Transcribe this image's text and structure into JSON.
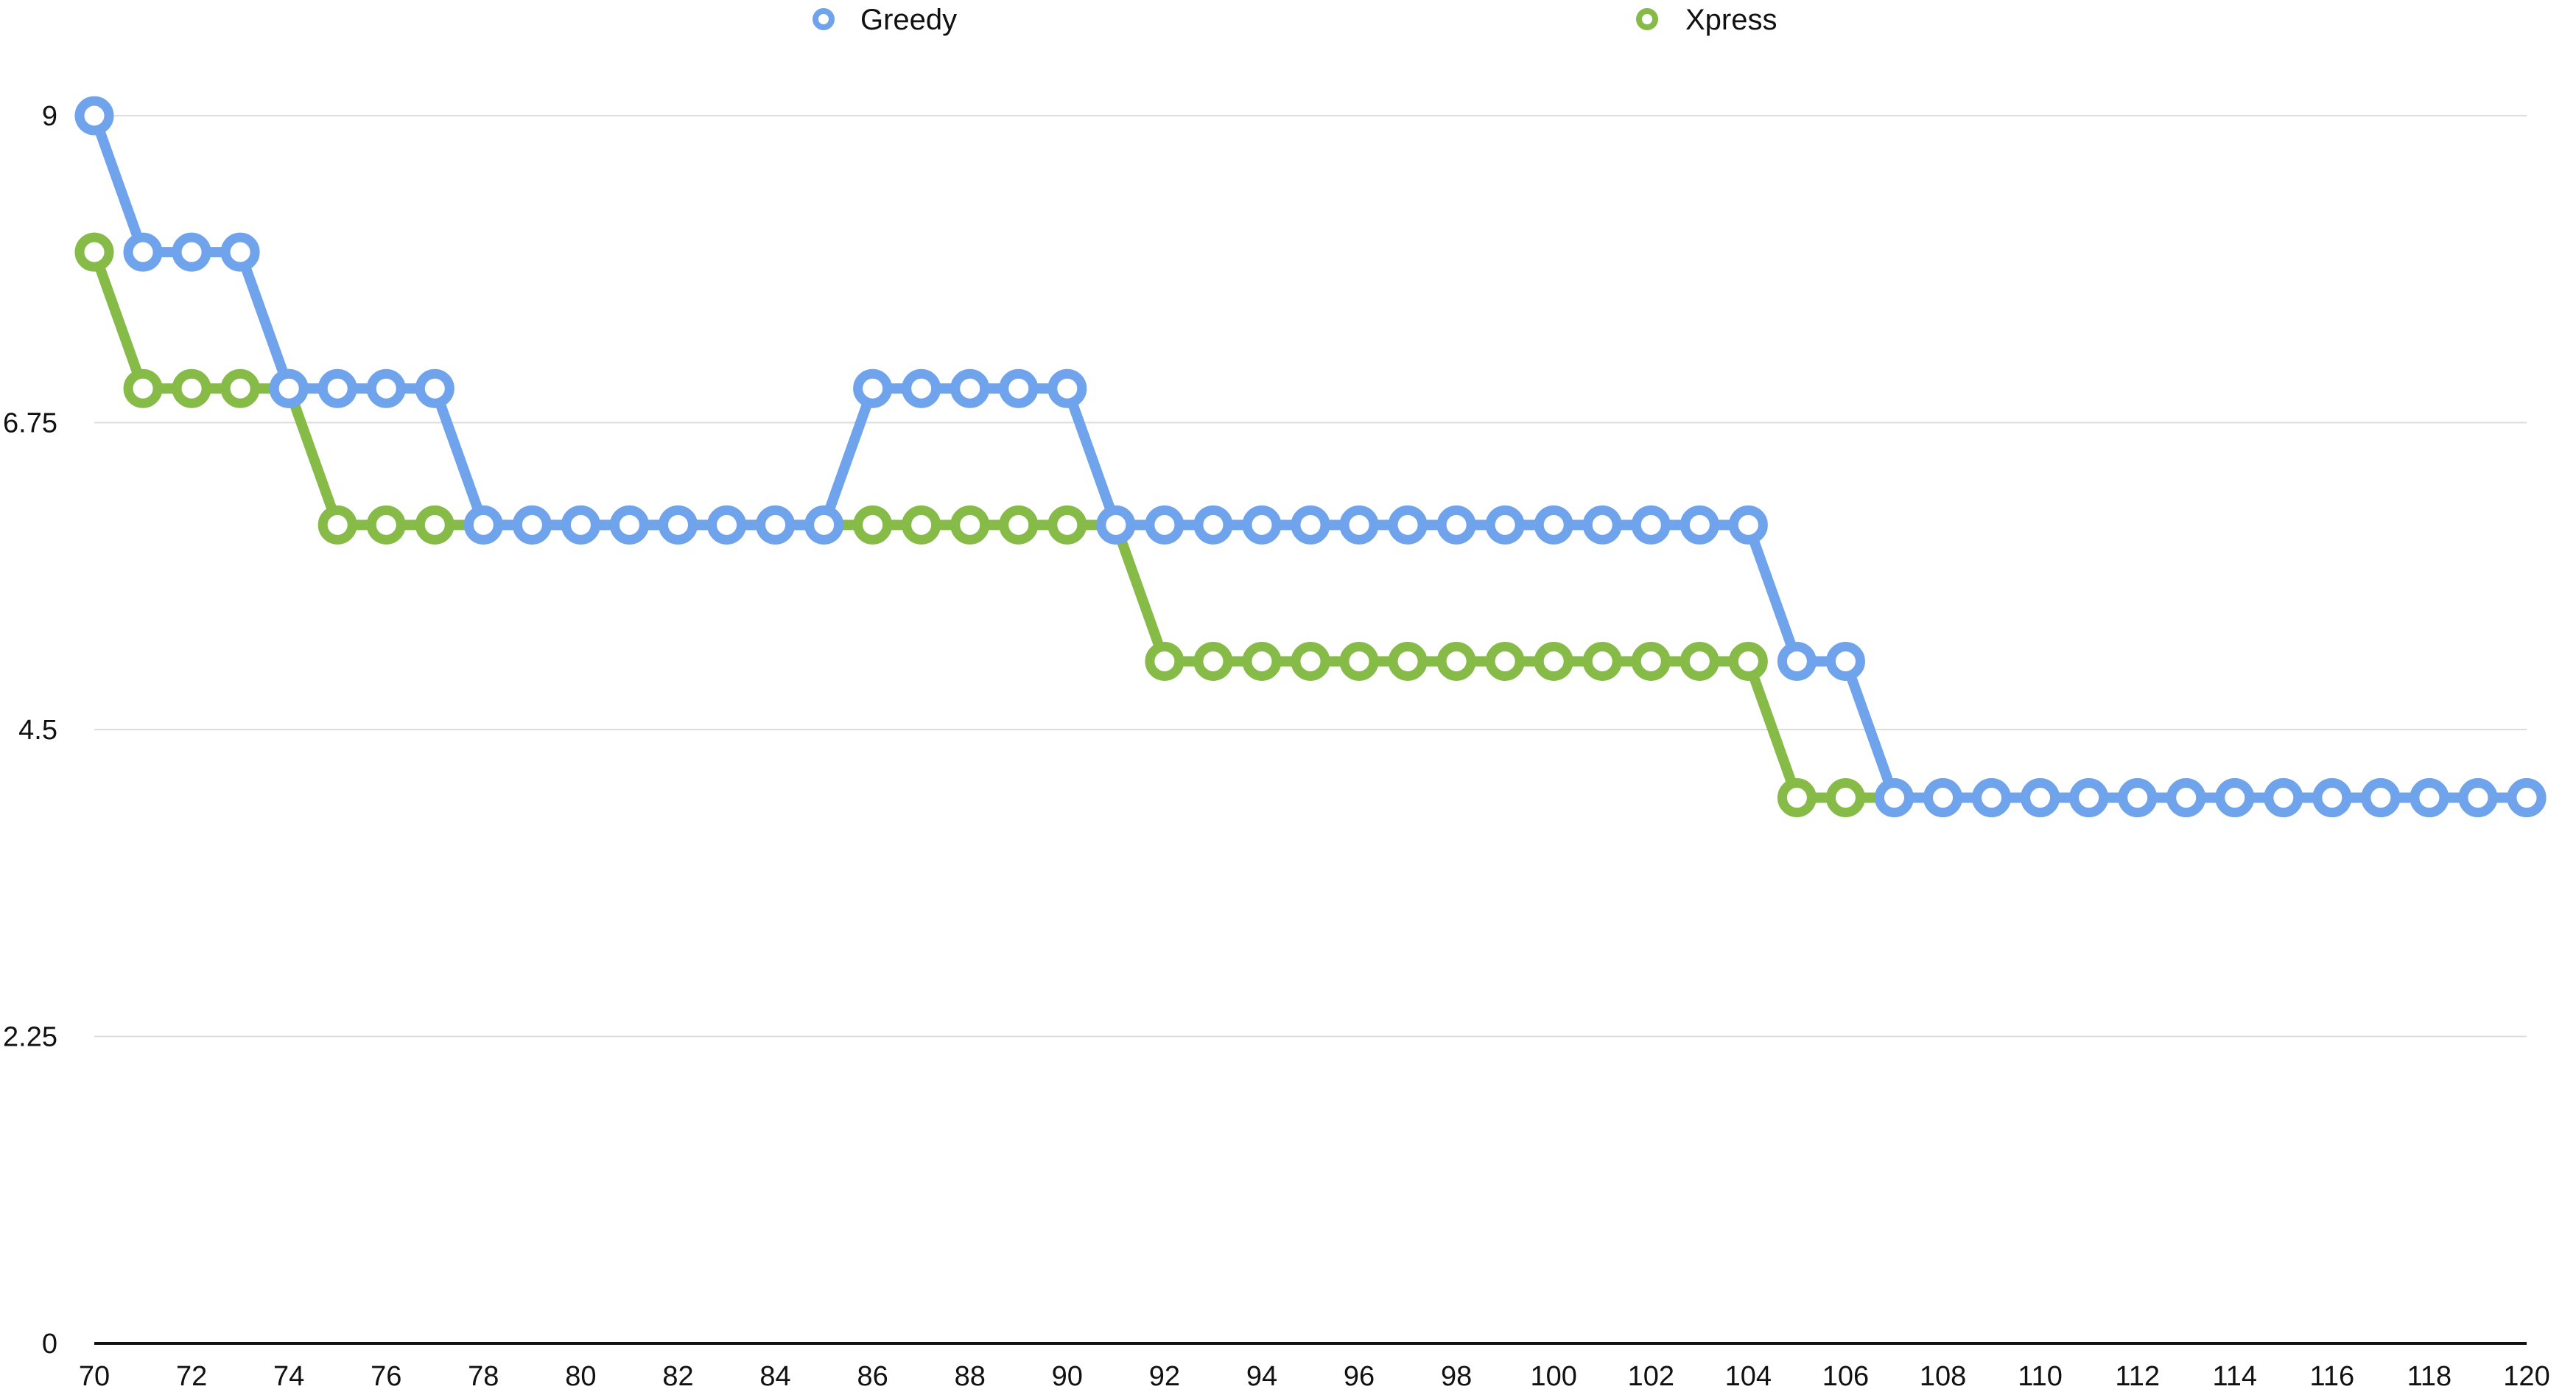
{
  "chart_data": {
    "type": "line",
    "x": [
      70,
      71,
      72,
      73,
      74,
      75,
      76,
      77,
      78,
      79,
      80,
      81,
      82,
      83,
      84,
      85,
      86,
      87,
      88,
      89,
      90,
      91,
      92,
      93,
      94,
      95,
      96,
      97,
      98,
      99,
      100,
      101,
      102,
      103,
      104,
      105,
      106,
      107,
      108,
      109,
      110,
      111,
      112,
      113,
      114,
      115,
      116,
      117,
      118,
      119,
      120
    ],
    "xlim": [
      70,
      120
    ],
    "x_ticks": [
      70,
      72,
      74,
      76,
      78,
      80,
      82,
      84,
      86,
      88,
      90,
      92,
      94,
      96,
      98,
      100,
      102,
      104,
      106,
      108,
      110,
      112,
      114,
      116,
      118,
      120
    ],
    "ylim": [
      0,
      9
    ],
    "y_ticks": [
      0,
      2.25,
      4.5,
      6.75,
      9
    ],
    "grid": true,
    "legend_position": "top-center",
    "title": "",
    "xlabel": "",
    "ylabel": "",
    "series": [
      {
        "name": "Greedy",
        "color": "#6fa3ec",
        "values": [
          9,
          8,
          8,
          8,
          7,
          7,
          7,
          7,
          6,
          6,
          6,
          6,
          6,
          6,
          6,
          6,
          7,
          7,
          7,
          7,
          7,
          6,
          6,
          6,
          6,
          6,
          6,
          6,
          6,
          6,
          6,
          6,
          6,
          6,
          6,
          5,
          5,
          4,
          4,
          4,
          4,
          4,
          4,
          4,
          4,
          4,
          4,
          4,
          4,
          4,
          4
        ]
      },
      {
        "name": "Xpress",
        "color": "#86bb47",
        "values": [
          8,
          7,
          7,
          7,
          7,
          6,
          6,
          6,
          6,
          6,
          6,
          6,
          6,
          6,
          6,
          6,
          6,
          6,
          6,
          6,
          6,
          6,
          5,
          5,
          5,
          5,
          5,
          5,
          5,
          5,
          5,
          5,
          5,
          5,
          5,
          4,
          4,
          4,
          4,
          4,
          4,
          4,
          4,
          4,
          4,
          4,
          4,
          4,
          4,
          4,
          4
        ]
      }
    ]
  }
}
